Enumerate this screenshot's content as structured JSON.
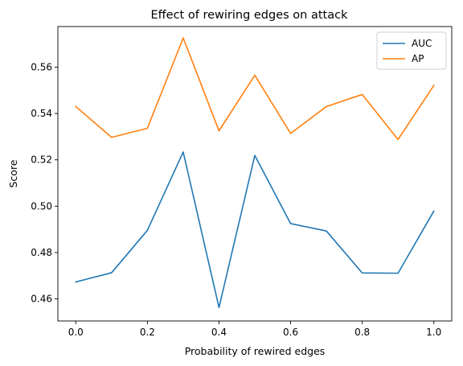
{
  "chart_data": {
    "type": "line",
    "title": "Effect of rewiring edges on attack",
    "xlabel": "Probability of rewired edges",
    "ylabel": "Score",
    "x": [
      0.0,
      0.1,
      0.2,
      0.3,
      0.4,
      0.5,
      0.6,
      0.7,
      0.8,
      0.9,
      1.0
    ],
    "xlim": [
      -0.05,
      1.05
    ],
    "ylim": [
      0.4505,
      0.5775
    ],
    "xticks": [
      0.0,
      0.2,
      0.4,
      0.6,
      0.8,
      1.0
    ],
    "xtick_labels": [
      "0.0",
      "0.2",
      "0.4",
      "0.6",
      "0.8",
      "1.0"
    ],
    "yticks": [
      0.46,
      0.48,
      0.5,
      0.52,
      0.54,
      0.56
    ],
    "ytick_labels": [
      "0.46",
      "0.48",
      "0.50",
      "0.52",
      "0.54",
      "0.56"
    ],
    "grid": false,
    "legend_position": "top-right",
    "series": [
      {
        "name": "AUC",
        "color": "#1f77b4",
        "values": [
          0.4673,
          0.4713,
          0.4896,
          0.5234,
          0.4563,
          0.5219,
          0.4925,
          0.4893,
          0.4712,
          0.4711,
          0.4979
        ]
      },
      {
        "name": "AP",
        "color": "#ff7f0e",
        "values": [
          0.543,
          0.5297,
          0.5336,
          0.5726,
          0.5325,
          0.5565,
          0.5314,
          0.543,
          0.5482,
          0.5288,
          0.5521
        ]
      }
    ]
  }
}
